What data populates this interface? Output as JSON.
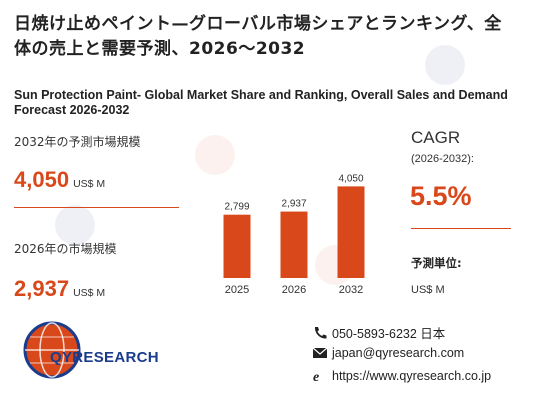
{
  "title_jp": "日焼け止めペイント—グローバル市場シェアとランキング、全体の売上と需要予測、2026～2032",
  "title_en": "Sun Protection Paint- Global Market Share and Ranking, Overall Sales and Demand Forecast 2026-2032",
  "forecast_label": "2032年の予測市場規模",
  "forecast_value": "4,050",
  "forecast_unit": "US$ M",
  "current_label": "2026年の市場規模",
  "current_value": "2,937",
  "current_unit": "US$ M",
  "cagr": {
    "title": "CAGR",
    "period": "(2026-2032):",
    "value": "5.5%"
  },
  "unit_block": {
    "title": "予測単位:",
    "value": "US$ M"
  },
  "logo": {
    "text": "QYRESEARCH",
    "icon": "globe-logo-icon"
  },
  "contact": {
    "phone": "050-5893-6232 日本",
    "email": "japan@qyresearch.com",
    "website": "https://www.qyresearch.co.jp",
    "phone_icon": "phone-icon",
    "email_icon": "envelope-icon",
    "web_icon": "web-icon"
  },
  "colors": {
    "accent": "#d9481a",
    "brand": "#1b3c8c"
  },
  "chart_data": {
    "type": "bar",
    "categories": [
      "2025",
      "2026",
      "2032"
    ],
    "values": [
      2799,
      2937,
      4050
    ],
    "value_labels": [
      "2,799",
      "2,937",
      "4,050"
    ],
    "title": "",
    "xlabel": "",
    "ylabel": "",
    "ylim": [
      0,
      4200
    ],
    "grid": false,
    "legend": "none"
  }
}
